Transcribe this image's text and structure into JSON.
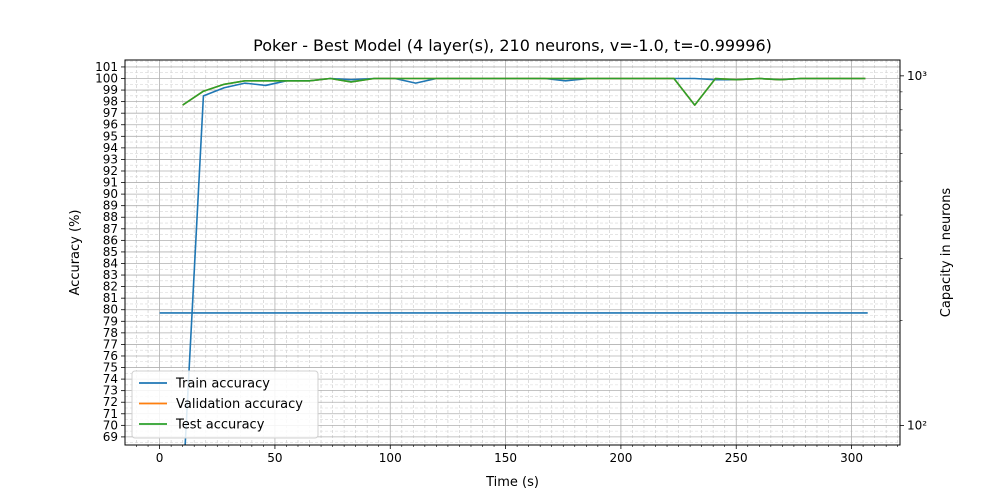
{
  "chart_data": {
    "type": "line",
    "title": "Poker - Best Model (4 layer(s), 210 neurons, v=-1.0, t=-0.99996)",
    "xlabel": "Time (s)",
    "ylabel": "Accuracy (%)",
    "y2label": "Capacity in neurons",
    "xlim": [
      -15,
      321
    ],
    "ylim": [
      68.3,
      101.6
    ],
    "y2lim": [
      88,
      1110
    ],
    "y2scale": "log",
    "x_ticks": [
      0,
      50,
      100,
      150,
      200,
      250,
      300
    ],
    "y_ticks": [
      69,
      70,
      71,
      72,
      73,
      74,
      75,
      76,
      77,
      78,
      79,
      80,
      81,
      82,
      83,
      84,
      85,
      86,
      87,
      88,
      89,
      90,
      91,
      92,
      93,
      94,
      95,
      96,
      97,
      98,
      99,
      100,
      101
    ],
    "y2_ticks": [
      100,
      1000
    ],
    "y2_tick_labels": [
      "10²",
      "10³"
    ],
    "grid": true,
    "legend": "lower-left",
    "series": [
      {
        "name": "Train accuracy",
        "color": "#1f77b4",
        "axis": "left",
        "x": [
          11,
          19,
          28,
          37,
          46,
          55,
          65,
          74,
          83,
          93,
          102,
          111,
          120,
          130,
          139,
          148,
          158,
          167,
          176,
          186,
          195,
          204,
          213,
          223,
          232,
          241,
          250,
          260,
          269,
          278,
          288,
          297,
          306
        ],
        "y": [
          68,
          98.5,
          99.2,
          99.6,
          99.4,
          99.8,
          99.8,
          100,
          99.9,
          100,
          100,
          99.6,
          100,
          100,
          100,
          100,
          100,
          100,
          99.8,
          100,
          100,
          100,
          100,
          100,
          100,
          99.9,
          99.9,
          100,
          99.9,
          100,
          100,
          100,
          100
        ]
      },
      {
        "name": "Validation accuracy",
        "color": "#ff7f0e",
        "axis": "left",
        "x": [
          10,
          19,
          28,
          37,
          46,
          55,
          65,
          74,
          83,
          93,
          102,
          111,
          120,
          130,
          139,
          148,
          158,
          167,
          176,
          186,
          195,
          204,
          213,
          223,
          232,
          241,
          250,
          260,
          269,
          278,
          288,
          297,
          306
        ],
        "y": [
          97.7,
          98.9,
          99.5,
          99.8,
          99.8,
          99.8,
          99.8,
          100,
          99.7,
          100,
          100,
          100,
          100,
          100,
          100,
          100,
          100,
          100,
          100,
          100,
          100,
          100,
          100,
          100,
          97.7,
          100,
          99.9,
          100,
          99.9,
          100,
          100,
          100,
          100
        ]
      },
      {
        "name": "Test accuracy",
        "color": "#2ca02c",
        "axis": "left",
        "x": [
          10,
          19,
          28,
          37,
          46,
          55,
          65,
          74,
          83,
          93,
          102,
          111,
          120,
          130,
          139,
          148,
          158,
          167,
          176,
          186,
          195,
          204,
          213,
          223,
          232,
          241,
          250,
          260,
          269,
          278,
          288,
          297,
          306
        ],
        "y": [
          97.7,
          98.9,
          99.5,
          99.8,
          99.8,
          99.8,
          99.8,
          100,
          99.7,
          100,
          100,
          100,
          100,
          100,
          100,
          100,
          100,
          100,
          100,
          100,
          100,
          100,
          100,
          100,
          97.7,
          100,
          99.9,
          100,
          99.9,
          100,
          100,
          100,
          100
        ]
      },
      {
        "name": "",
        "color": "#1f77b4",
        "axis": "right",
        "x": [
          0,
          307
        ],
        "y": [
          210,
          210
        ]
      }
    ]
  }
}
